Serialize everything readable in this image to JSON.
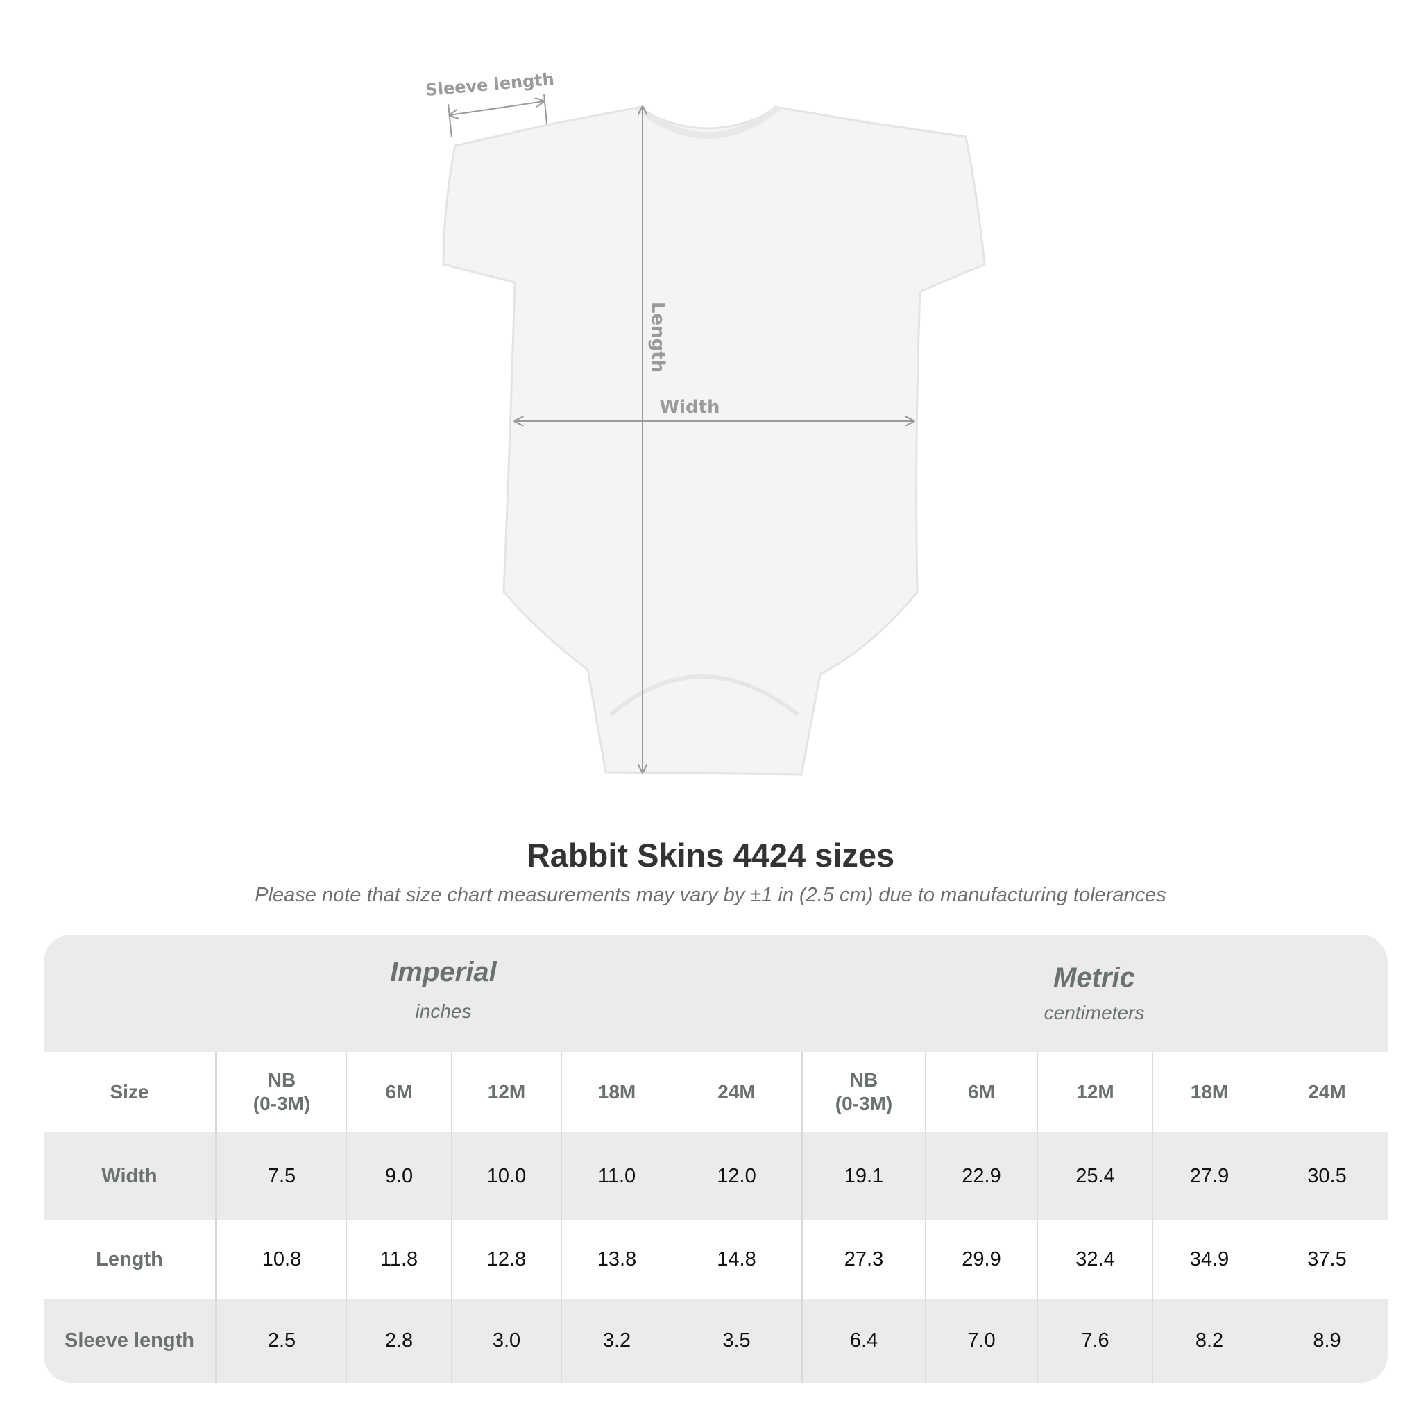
{
  "diagram": {
    "sleeve_label": "Sleeve length",
    "length_label": "Length",
    "width_label": "Width"
  },
  "title": "Rabbit Skins 4424 sizes",
  "note": "Please note that size chart measurements may vary by ±1 in (2.5 cm) due to manufacturing tolerances",
  "table": {
    "imperial": {
      "name": "Imperial",
      "unit": "inches"
    },
    "metric": {
      "name": "Metric",
      "unit": "centimeters"
    },
    "header": [
      "Size",
      "NB\n(0-3M)",
      "6M",
      "12M",
      "18M",
      "24M",
      "NB\n(0-3M)",
      "6M",
      "12M",
      "18M",
      "24M"
    ],
    "rows": [
      [
        "Width",
        "7.5",
        "9.0",
        "10.0",
        "11.0",
        "12.0",
        "19.1",
        "22.9",
        "25.4",
        "27.9",
        "30.5"
      ],
      [
        "Length",
        "10.8",
        "11.8",
        "12.8",
        "13.8",
        "14.8",
        "27.3",
        "29.9",
        "32.4",
        "34.9",
        "37.5"
      ],
      [
        "Sleeve length",
        "2.5",
        "2.8",
        "3.0",
        "3.2",
        "3.5",
        "6.4",
        "7.0",
        "7.6",
        "8.2",
        "8.9"
      ]
    ]
  },
  "colors": {
    "label_text": "#6b7171",
    "band": "#ebebeb",
    "title": "#333333"
  }
}
